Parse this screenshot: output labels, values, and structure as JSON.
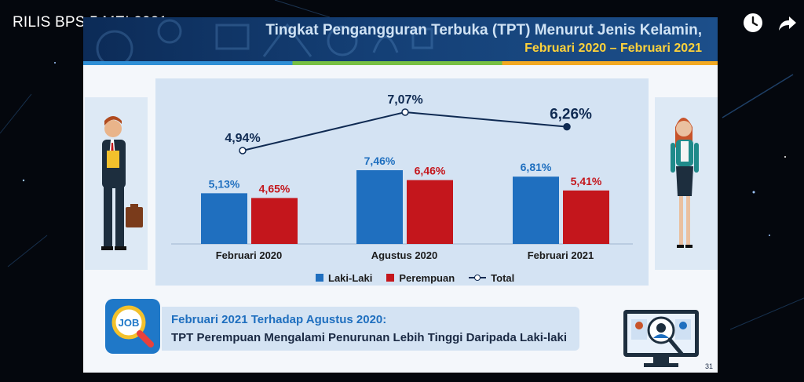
{
  "video": {
    "title": "RILIS BPS 5 MEI 2021"
  },
  "controls": {
    "watch_later_icon": "clock-icon",
    "share_icon": "share-arrow-icon"
  },
  "slide": {
    "title_line1": "Tingkat Pengangguran Terbuka (TPT) Menurut Jenis Kelamin,",
    "title_line2": "Februari 2020 – Februari 2021",
    "job_badge": "JOB",
    "note_line1": "Februari 2021 Terhadap Agustus 2020:",
    "note_line2": "TPT Perempuan Mengalami Penurunan Lebih Tinggi Daripada Laki-laki",
    "page_number": "31",
    "colors": {
      "header": "#143f75",
      "title_accent": "#ffd23a",
      "laki": "#1f6fbf",
      "perempuan": "#c4161c",
      "total": "#0f2a52"
    }
  },
  "chart_data": {
    "type": "bar",
    "categories": [
      "Februari 2020",
      "Agustus 2020",
      "Februari 2021"
    ],
    "series": [
      {
        "name": "Laki-Laki",
        "type": "bar",
        "values": [
          5.13,
          7.46,
          6.81
        ],
        "labels": [
          "5,13%",
          "7,46%",
          "6,81%"
        ]
      },
      {
        "name": "Perempuan",
        "type": "bar",
        "values": [
          4.65,
          6.46,
          5.41
        ],
        "labels": [
          "4,65%",
          "6,46%",
          "5,41%"
        ]
      },
      {
        "name": "Total",
        "type": "line",
        "values": [
          4.94,
          7.07,
          6.26
        ],
        "labels": [
          "4,94%",
          "7,07%",
          "6,26%"
        ]
      }
    ],
    "legend_position": "bottom",
    "grid": false
  }
}
